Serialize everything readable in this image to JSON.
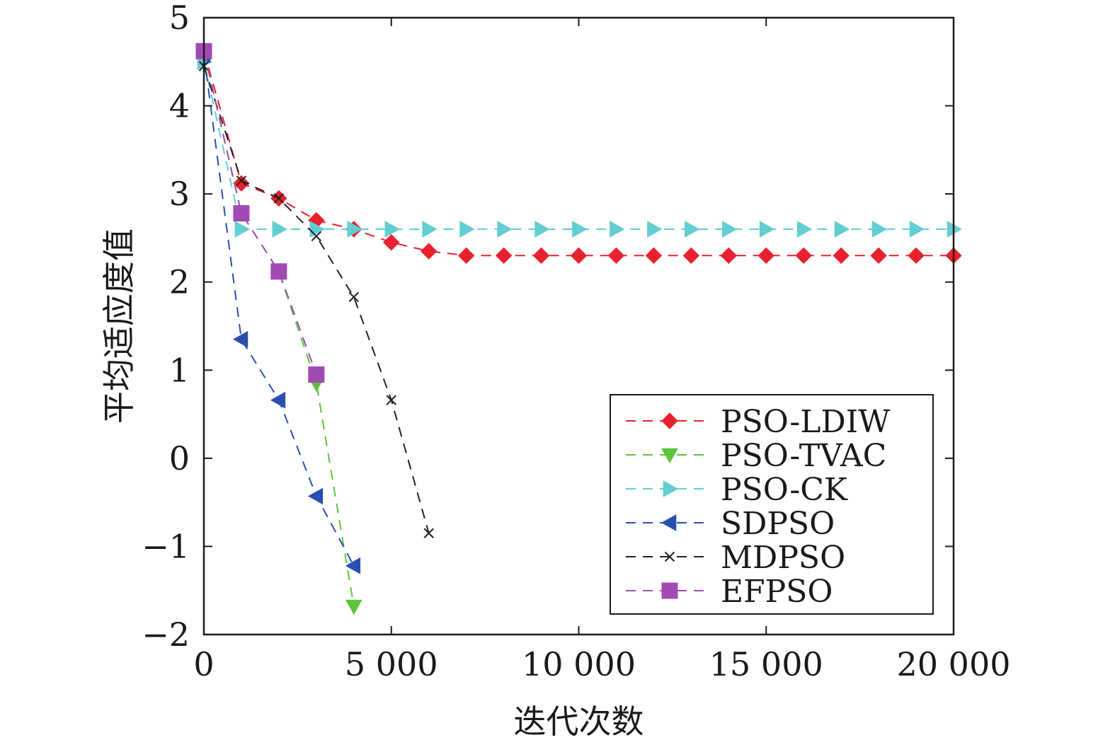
{
  "chart_data": {
    "type": "line",
    "title": "",
    "xlabel": "迭代次数",
    "ylabel": "平均适应度值",
    "xlim": [
      0,
      20000
    ],
    "ylim": [
      -2,
      5
    ],
    "x_ticks": [
      0,
      5000,
      10000,
      15000,
      20000
    ],
    "x_tick_labels": [
      "0",
      "5 000",
      "10 000",
      "15 000",
      "20 000"
    ],
    "y_ticks": [
      -2,
      -1,
      0,
      1,
      2,
      3,
      4,
      5
    ],
    "y_tick_labels": [
      "−2",
      "−1",
      "0",
      "1",
      "2",
      "3",
      "4",
      "5"
    ],
    "grid": false,
    "legend_position": "lower-right",
    "series": [
      {
        "name": "PSO-LDIW",
        "color": "#e8212e",
        "marker": "diamond",
        "x": [
          0,
          1000,
          2000,
          3000,
          4000,
          5000,
          6000,
          7000,
          8000,
          9000,
          10000,
          11000,
          12000,
          13000,
          14000,
          15000,
          16000,
          17000,
          18000,
          19000,
          20000
        ],
        "y": [
          4.62,
          3.12,
          2.95,
          2.7,
          2.6,
          2.45,
          2.35,
          2.3,
          2.3,
          2.3,
          2.3,
          2.3,
          2.3,
          2.3,
          2.3,
          2.3,
          2.3,
          2.3,
          2.3,
          2.3,
          2.3
        ]
      },
      {
        "name": "PSO-TVAC",
        "color": "#5cc43a",
        "marker": "triangle-down",
        "x": [
          0,
          1000,
          2000,
          3000,
          4000
        ],
        "y": [
          4.62,
          2.78,
          2.12,
          0.85,
          -1.68
        ]
      },
      {
        "name": "PSO-CK",
        "color": "#62cdd2",
        "marker": "triangle-right",
        "x": [
          0,
          1000,
          2000,
          3000,
          4000,
          5000,
          6000,
          7000,
          8000,
          9000,
          10000,
          11000,
          12000,
          13000,
          14000,
          15000,
          16000,
          17000,
          18000,
          19000,
          20000
        ],
        "y": [
          4.5,
          2.6,
          2.6,
          2.6,
          2.6,
          2.6,
          2.6,
          2.6,
          2.6,
          2.6,
          2.6,
          2.6,
          2.6,
          2.6,
          2.6,
          2.6,
          2.6,
          2.6,
          2.6,
          2.6,
          2.6
        ]
      },
      {
        "name": "SDPSO",
        "color": "#2a4fb0",
        "marker": "triangle-left",
        "x": [
          0,
          1000,
          2000,
          3000,
          4000
        ],
        "y": [
          4.58,
          1.35,
          0.66,
          -0.43,
          -1.22
        ]
      },
      {
        "name": "MDPSO",
        "color": "#222222",
        "marker": "x",
        "x": [
          0,
          1000,
          2000,
          3000,
          4000,
          5000,
          6000
        ],
        "y": [
          4.45,
          3.15,
          2.95,
          2.52,
          1.83,
          0.66,
          -0.85
        ]
      },
      {
        "name": "EFPSO",
        "color": "#a24ab3",
        "marker": "square",
        "x": [
          0,
          1000,
          2000,
          3000
        ],
        "y": [
          4.62,
          2.78,
          2.12,
          0.95
        ]
      }
    ]
  }
}
